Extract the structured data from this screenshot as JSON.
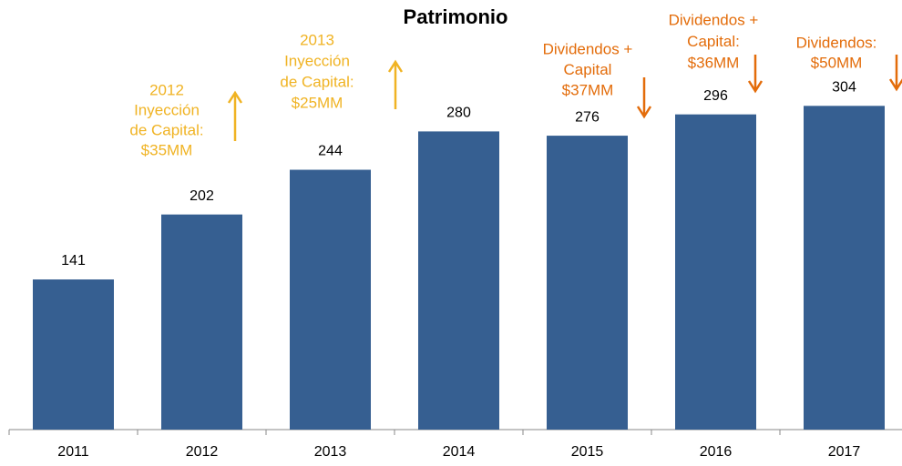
{
  "chart_data": {
    "type": "bar",
    "title": "Patrimonio",
    "categories": [
      "2011",
      "2012",
      "2013",
      "2014",
      "2015",
      "2016",
      "2017"
    ],
    "values": [
      141,
      202,
      244,
      280,
      276,
      296,
      304
    ],
    "color": "#365f91",
    "ylim": [
      0,
      400
    ],
    "annotations": [
      {
        "lines": [
          "2012",
          "Inyección",
          "de Capital:",
          "$35MM"
        ],
        "color": "#f0b323",
        "arrow": "up"
      },
      {
        "lines": [
          "2013",
          "Inyección",
          "de Capital:",
          "$25MM"
        ],
        "color": "#f0b323",
        "arrow": "up"
      },
      {
        "lines": [
          "Dividendos +",
          "Capital",
          "$37MM"
        ],
        "color": "#e36c0a",
        "arrow": "down"
      },
      {
        "lines": [
          "Dividendos +",
          "Capital:",
          "$36MM"
        ],
        "color": "#e36c0a",
        "arrow": "down"
      },
      {
        "lines": [
          "Dividendos:",
          "$50MM"
        ],
        "color": "#e36c0a",
        "arrow": "down"
      }
    ]
  }
}
